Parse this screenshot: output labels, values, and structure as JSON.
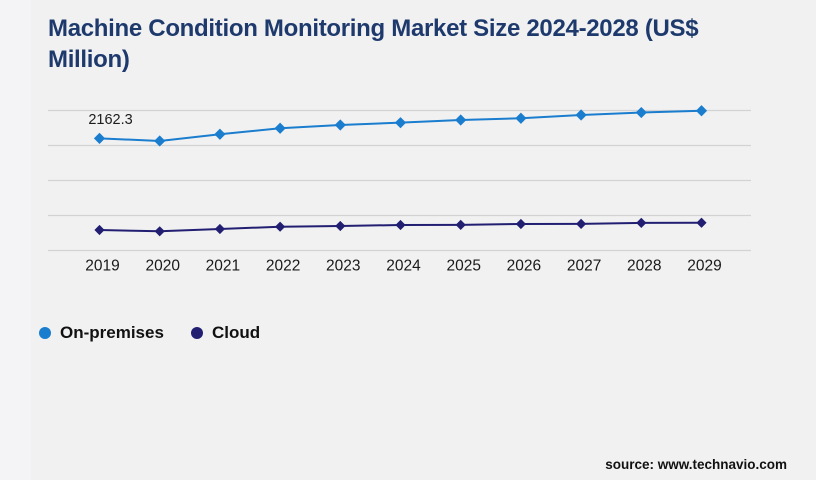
{
  "header": {
    "title": "Machine Condition Monitoring Market Size 2024-2028 (US$ Million)",
    "title_color": "#1e3a6d"
  },
  "legend": {
    "items": [
      {
        "label": "On-premises",
        "color": "#1a7dce"
      },
      {
        "label": "Cloud",
        "color": "#221f72"
      }
    ]
  },
  "footer": {
    "source_text": "source: www.technavio.com"
  },
  "theme": {
    "background": "#f1f1f2",
    "left_strip": "#f4f4f6",
    "gridline_color": "#d3d3d5",
    "axis_text_color": "#1a1a1a",
    "data_label_color": "#1c1c1c"
  },
  "chart_data": {
    "type": "line",
    "title": "Machine Condition Monitoring Market Size 2024-2028 (US$ Million)",
    "categories": [
      "2019",
      "2020",
      "2021",
      "2022",
      "2023",
      "2024",
      "2025",
      "2026",
      "2027",
      "2028",
      "2029"
    ],
    "series": [
      {
        "name": "On-premises",
        "color": "#1a7dce",
        "marker": "diamond",
        "values": [
          2162.3,
          2112.6,
          2241.4,
          2357.2,
          2420.8,
          2465.2,
          2517.3,
          2550.1,
          2613.7,
          2660.5,
          2694.8
        ]
      },
      {
        "name": "Cloud",
        "color": "#221f72",
        "marker": "diamond",
        "values": [
          395.4,
          370.4,
          414.7,
          459.1,
          472.6,
          491.9,
          494.2,
          511.2,
          513.5,
          533.1,
          534.6
        ]
      }
    ],
    "data_labels": [
      {
        "series": "On-premises",
        "category": "2019",
        "text": "2162.3"
      }
    ],
    "xlabel": "",
    "ylabel": "",
    "ylim": [
      0,
      2700
    ],
    "gridline_count": 5,
    "grid": true,
    "y_axis_labels_visible": false,
    "legend_position": "bottom-left"
  }
}
